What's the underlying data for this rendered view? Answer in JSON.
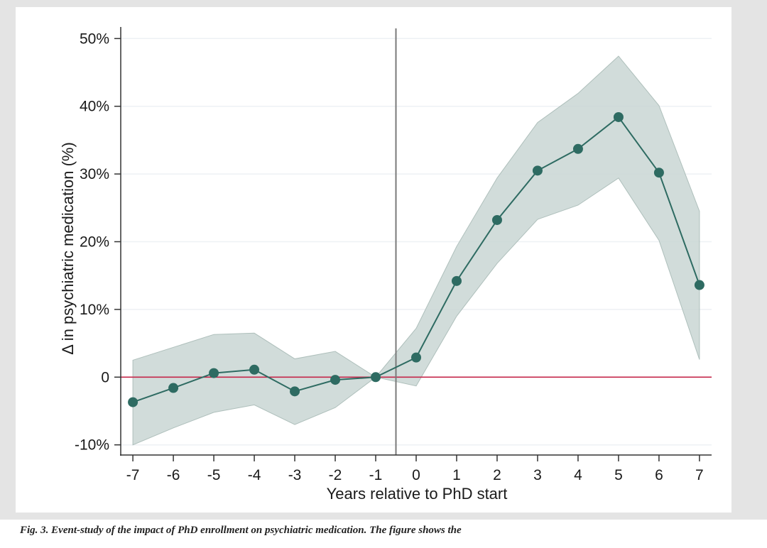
{
  "chart_data": {
    "type": "line",
    "title": "",
    "xlabel": "Years relative to PhD start",
    "ylabel": "Δ in psychiatric medication (%)",
    "x": [
      -7,
      -6,
      -5,
      -4,
      -3,
      -2,
      -1,
      0,
      1,
      2,
      3,
      4,
      5,
      6,
      7
    ],
    "xticks": [
      "-7",
      "-6",
      "-5",
      "-4",
      "-3",
      "-2",
      "-1",
      "0",
      "1",
      "2",
      "3",
      "4",
      "5",
      "6",
      "7"
    ],
    "yticks": [
      -10,
      0,
      10,
      20,
      30,
      40,
      50
    ],
    "ytick_labels": [
      "-10%",
      "0",
      "10%",
      "20%",
      "30%",
      "40%",
      "50%"
    ],
    "ylim": [
      -11.5,
      51.5
    ],
    "xlim": [
      -7.3,
      7.3
    ],
    "series": [
      {
        "values": [
          -3.7,
          -1.6,
          0.6,
          1.1,
          -2.1,
          -0.4,
          0.0,
          2.9,
          14.2,
          23.2,
          30.5,
          33.7,
          38.4,
          30.2,
          13.6
        ],
        "ci_lower": [
          -10.0,
          -7.5,
          -5.2,
          -4.1,
          -7.0,
          -4.5,
          0.0,
          -1.3,
          9.0,
          16.8,
          23.3,
          25.4,
          29.4,
          20.2,
          2.6
        ],
        "ci_upper": [
          2.5,
          4.4,
          6.3,
          6.5,
          2.7,
          3.8,
          0.0,
          7.2,
          19.3,
          29.4,
          37.6,
          41.9,
          47.4,
          40.1,
          24.5
        ]
      }
    ],
    "reference_lines": {
      "horizontal_y": 0,
      "vertical_x": -0.5
    },
    "grid": true,
    "colors": {
      "line": "#2e6b62",
      "marker": "#2e6b62",
      "ci_fill": "#c9d6d3",
      "ci_edge": "#aebfbb",
      "zero_line": "#c4264a",
      "vline": "#7a7a7a",
      "grid": "#eef1f4"
    }
  },
  "caption": "Fig. 3. Event-study of the impact of PhD enrollment on psychiatric medication. The figure shows the"
}
